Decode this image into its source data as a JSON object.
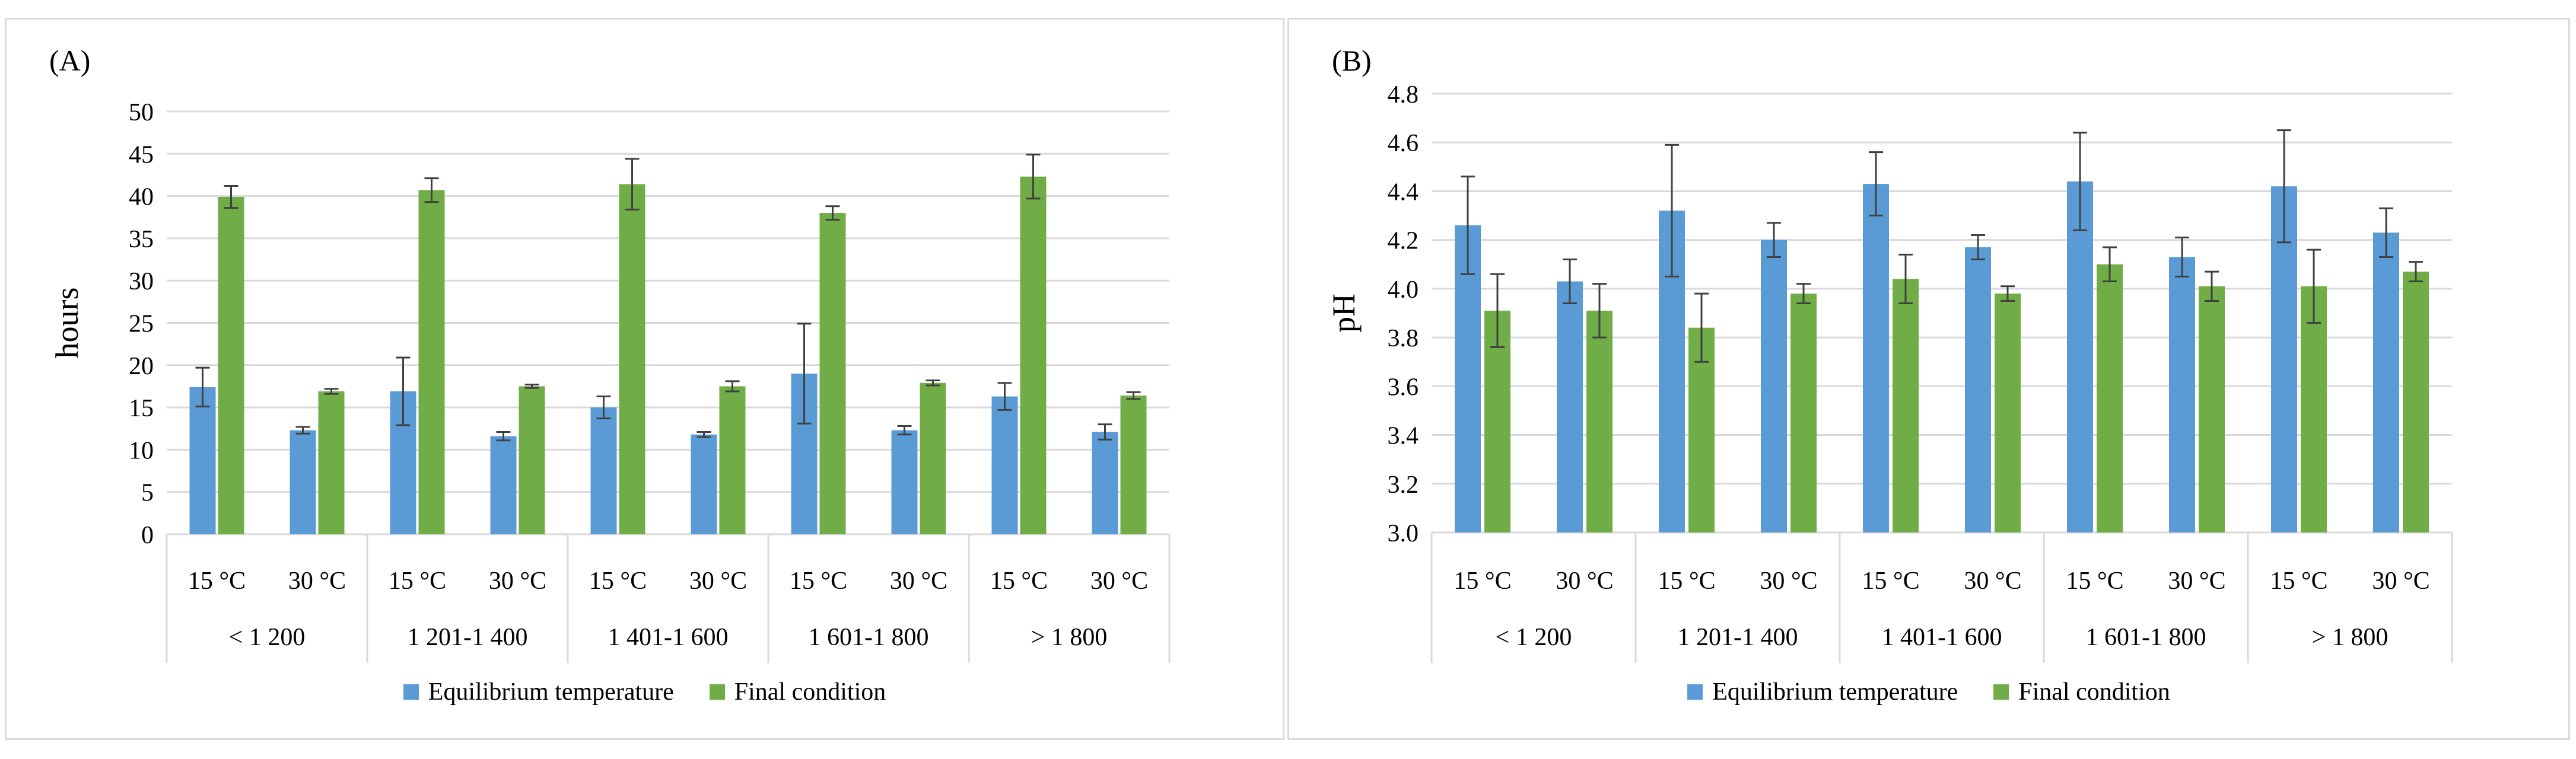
{
  "chart_data": [
    {
      "panel": "(A)",
      "type": "bar",
      "ylabel": "hours",
      "ylim": [
        0,
        50
      ],
      "ytick_step": 5,
      "grid": true,
      "legend_position": "bottom",
      "groups": [
        "< 1 200",
        "1 201-1 400",
        "1 401-1 600",
        "1 601-1 800",
        "> 1 800"
      ],
      "subcategories": [
        "15 °C",
        "30 °C"
      ],
      "series": [
        {
          "name": "Equilibrium temperature",
          "color": "#5b9bd5",
          "values": [
            17.4,
            12.3,
            16.9,
            11.6,
            15.0,
            11.8,
            19.0,
            12.3,
            16.3,
            12.1
          ],
          "errors": [
            2.3,
            0.4,
            4.0,
            0.5,
            1.3,
            0.3,
            5.9,
            0.5,
            1.6,
            0.9
          ]
        },
        {
          "name": "Final condition",
          "color": "#70ad47",
          "values": [
            39.9,
            16.9,
            40.7,
            17.5,
            41.4,
            17.5,
            38.0,
            17.9,
            42.3,
            16.4
          ],
          "errors": [
            1.3,
            0.3,
            1.4,
            0.2,
            3.0,
            0.6,
            0.8,
            0.3,
            2.6,
            0.4
          ]
        }
      ]
    },
    {
      "panel": "(B)",
      "type": "bar",
      "ylabel": "pH",
      "ylim": [
        3.0,
        4.8
      ],
      "ytick_step": 0.2,
      "grid": true,
      "legend_position": "bottom",
      "groups": [
        "< 1 200",
        "1 201-1 400",
        "1 401-1 600",
        "1 601-1 800",
        "> 1 800"
      ],
      "subcategories": [
        "15 °C",
        "30 °C"
      ],
      "series": [
        {
          "name": "Equilibrium temperature",
          "color": "#5b9bd5",
          "values": [
            4.26,
            4.03,
            4.32,
            4.2,
            4.43,
            4.17,
            4.44,
            4.13,
            4.42,
            4.23
          ],
          "errors": [
            0.2,
            0.09,
            0.27,
            0.07,
            0.13,
            0.05,
            0.2,
            0.08,
            0.23,
            0.1
          ]
        },
        {
          "name": "Final condition",
          "color": "#70ad47",
          "values": [
            3.91,
            3.91,
            3.84,
            3.98,
            4.04,
            3.98,
            4.1,
            4.01,
            4.01,
            4.07
          ],
          "errors": [
            0.15,
            0.11,
            0.14,
            0.04,
            0.1,
            0.03,
            0.07,
            0.06,
            0.15,
            0.04
          ]
        }
      ]
    }
  ]
}
